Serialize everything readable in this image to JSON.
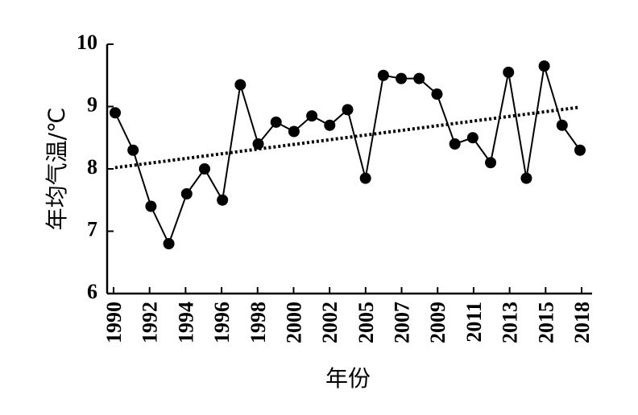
{
  "chart_data": {
    "type": "line",
    "title": "",
    "xlabel": "年份",
    "ylabel": "年均气温/℃",
    "ylim": [
      6,
      10
    ],
    "yticks": [
      6,
      7,
      8,
      9,
      10
    ],
    "x_tick_labels": [
      "1990",
      "1992",
      "1994",
      "1996",
      "1998",
      "2000",
      "2002",
      "2005",
      "2007",
      "2009",
      "2011",
      "2013",
      "2015",
      "2018"
    ],
    "grid": false,
    "series": [
      {
        "values": [
          8.9,
          8.3,
          7.4,
          6.8,
          7.6,
          8.0,
          7.5,
          9.35,
          8.4,
          8.75,
          8.6,
          8.85,
          8.7,
          8.95,
          7.85,
          9.5,
          9.45,
          9.45,
          9.2,
          8.4,
          8.5,
          8.1,
          9.55,
          7.85,
          9.65,
          8.7,
          8.3
        ],
        "style": "solid",
        "marker": "filled-circle",
        "color": "#000000"
      },
      {
        "values": [
          8.02,
          8.99
        ],
        "style": "dotted",
        "marker": "none",
        "color": "#000000"
      }
    ]
  }
}
